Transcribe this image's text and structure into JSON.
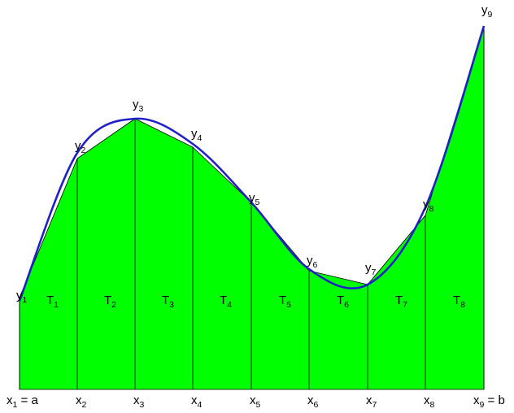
{
  "diagram": {
    "y_points": [
      {
        "letter": "y",
        "sub": "1"
      },
      {
        "letter": "y",
        "sub": "2"
      },
      {
        "letter": "y",
        "sub": "3"
      },
      {
        "letter": "y",
        "sub": "4"
      },
      {
        "letter": "y",
        "sub": "5"
      },
      {
        "letter": "y",
        "sub": "6"
      },
      {
        "letter": "y",
        "sub": "7"
      },
      {
        "letter": "y",
        "sub": "8"
      },
      {
        "letter": "y",
        "sub": "9"
      }
    ],
    "x_points": [
      {
        "letter": "x",
        "sub": "1",
        "suffix": " = a"
      },
      {
        "letter": "x",
        "sub": "2",
        "suffix": ""
      },
      {
        "letter": "x",
        "sub": "3",
        "suffix": ""
      },
      {
        "letter": "x",
        "sub": "4",
        "suffix": ""
      },
      {
        "letter": "x",
        "sub": "5",
        "suffix": ""
      },
      {
        "letter": "x",
        "sub": "6",
        "suffix": ""
      },
      {
        "letter": "x",
        "sub": "7",
        "suffix": ""
      },
      {
        "letter": "x",
        "sub": "8",
        "suffix": ""
      },
      {
        "letter": "x",
        "sub": "9",
        "suffix": " = b"
      }
    ],
    "trapezoids": [
      {
        "letter": "T",
        "sub": "1"
      },
      {
        "letter": "T",
        "sub": "2"
      },
      {
        "letter": "T",
        "sub": "3"
      },
      {
        "letter": "T",
        "sub": "4"
      },
      {
        "letter": "T",
        "sub": "5"
      },
      {
        "letter": "T",
        "sub": "6"
      },
      {
        "letter": "T",
        "sub": "7"
      },
      {
        "letter": "T",
        "sub": "8"
      }
    ],
    "colors": {
      "fill": "#00ff00",
      "curve": "#2020c8",
      "edge": "#000000",
      "background": "#ffffff"
    }
  }
}
